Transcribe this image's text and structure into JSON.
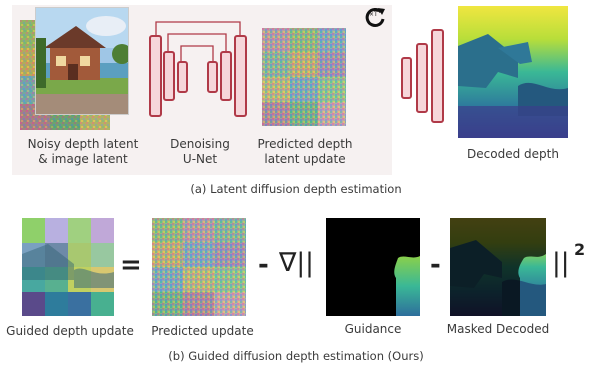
{
  "top": {
    "noisy_label_1": "Noisy depth latent",
    "noisy_label_2": "& image latent",
    "unet_label_1": "Denoising",
    "unet_label_2": "U-Net",
    "pred_label_1": "Predicted depth",
    "pred_label_2": "latent update",
    "decoded_label": "Decoded depth",
    "loop_label": "×T",
    "caption": "(a) Latent diffusion depth estimation"
  },
  "bottom": {
    "guided_label": "Guided depth update",
    "equals": "=",
    "pred_label": "Predicted update",
    "minus1": "-",
    "nabla": "∇||",
    "guidance_label": "Guidance",
    "minus2": "-",
    "masked_label": "Masked Decoded",
    "norm_close": "||",
    "exponent": "2",
    "caption": "(b) Guided diffusion depth estimation (Ours)"
  },
  "colors": {
    "unet_stroke": "#b03a48",
    "unet_fill": "#f6d6da",
    "panel_bg": "#f6f1f1"
  }
}
